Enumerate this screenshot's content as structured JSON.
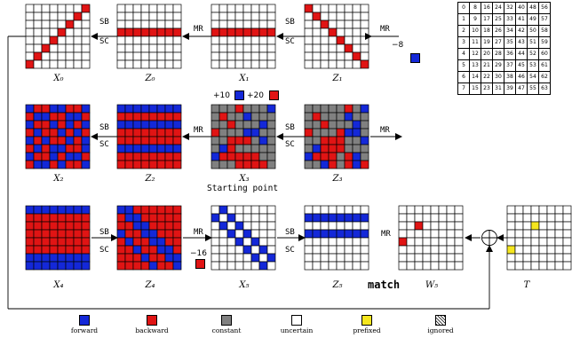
{
  "colors": {
    "forward": "#1428d8",
    "backward": "#e01414",
    "constant": "#808080",
    "uncertain": "#ffffff",
    "prefixed": "#f5e61e",
    "ignored": "hatched"
  },
  "grid_labels": {
    "X0": "X₀",
    "Z0": "Z₀",
    "X1": "X₁",
    "Z1": "Z₁",
    "X2": "X₂",
    "Z2": "Z₂",
    "X3": "X₃",
    "Z3": "Z₃",
    "X4": "X₄",
    "Z4": "Z₄",
    "X5": "X₅",
    "Z5": "Z₅",
    "W5": "W₅",
    "T": "T"
  },
  "ops": {
    "sb": "SB",
    "sc": "SC",
    "mr": "MR"
  },
  "annotations": {
    "minus8": "−8",
    "plus10": "+10",
    "plus20": "+20",
    "minus16": "−16",
    "starting": "Starting point",
    "match": "match"
  },
  "legend": [
    {
      "key": "forward",
      "label": "forward"
    },
    {
      "key": "backward",
      "label": "backward"
    },
    {
      "key": "constant",
      "label": "constant"
    },
    {
      "key": "uncertain",
      "label": "uncertain"
    },
    {
      "key": "prefixed",
      "label": "prefixed"
    },
    {
      "key": "ignored",
      "label": "ignored"
    }
  ],
  "perm_table": [
    [
      "0",
      "8",
      "16",
      "24",
      "32",
      "40",
      "48",
      "56"
    ],
    [
      "1",
      "9",
      "17",
      "25",
      "33",
      "41",
      "49",
      "57"
    ],
    [
      "2",
      "10",
      "18",
      "26",
      "34",
      "42",
      "50",
      "58"
    ],
    [
      "3",
      "11",
      "19",
      "27",
      "35",
      "43",
      "51",
      "59"
    ],
    [
      "4",
      "12",
      "20",
      "28",
      "36",
      "44",
      "52",
      "60"
    ],
    [
      "5",
      "13",
      "21",
      "29",
      "37",
      "45",
      "53",
      "61"
    ],
    [
      "6",
      "14",
      "22",
      "30",
      "38",
      "46",
      "54",
      "62"
    ],
    [
      "7",
      "15",
      "23",
      "31",
      "39",
      "47",
      "55",
      "63"
    ]
  ],
  "grids": {
    "X0": [
      "UUUUUUUR",
      "UUUUUURU",
      "UUUUURUU",
      "UUUURUUU",
      "UUURUUUU",
      "UURUUUUU",
      "URUUUUUU",
      "RUUUUUUU"
    ],
    "Z0": [
      "UUUUUUUU",
      "UUUUUUUU",
      "UUUUUUUU",
      "RRRRRRRR",
      "UUUUUUUU",
      "UUUUUUUU",
      "UUUUUUUU",
      "UUUUUUUU"
    ],
    "X1": [
      "UUUUUUUU",
      "UUUUUUUU",
      "UUUUUUUU",
      "RRRRRRRR",
      "UUUUUUUU",
      "UUUUUUUU",
      "UUUUUUUU",
      "UUUUUUUU"
    ],
    "Z1": [
      "RUUUUUUU",
      "URUUUUUU",
      "UURUUUUU",
      "UUURUUUU",
      "UUUURUUU",
      "UUUUURUU",
      "UUUUUURU",
      "UUUUUUUR"
    ],
    "X2": [
      "BRRBBRRB",
      "RBBRRBBR",
      "BRRBRBRB",
      "RBRRBRBR",
      "BRBRRBRB",
      "RBRBBRRB",
      "BRRBRBBR",
      "RBBRBRRB"
    ],
    "Z2": [
      "BBBBBBBB",
      "RRRRRRRR",
      "BBBBBBBB",
      "RRRRRRRR",
      "RRRRRRRR",
      "BBBBBBBB",
      "RRRRRRRR",
      "RRRRRRRR"
    ],
    "X3": [
      "GGGRGGGB",
      "GRGGBGGG",
      "GGRGGGBG",
      "RGGGBBGG",
      "GGRRRGBG",
      "GBRGGGGG",
      "BRRRRRGG",
      "GGGRRRRG"
    ],
    "Z3": [
      "GGGGGRGB",
      "GRGGGBGG",
      "GGRGGGBG",
      "RGGGRBBG",
      "GGRRRGGB",
      "GBRRRGGG",
      "BRRRGRBG",
      "GGBRGRBR"
    ],
    "X4": [
      "BBBBBBBB",
      "RRRRRRRR",
      "RRRRRRRR",
      "RRRRRRRR",
      "RRRRRRRR",
      "RRRRRRRR",
      "BBBBBBBB",
      "BBBBBBBB"
    ],
    "Z4": [
      "BBRRRRRR",
      "RBBRRRRR",
      "RRBBRRRR",
      "BRRBBRRR",
      "RBRRBBRR",
      "RRBRRBBR",
      "RRRBRRBB",
      "RRRRBRRB"
    ],
    "X5": [
      "UBUUUUUU",
      "BUBUUUUU",
      "UBUBUUUU",
      "UUBUBUUU",
      "UUUBUBUU",
      "UUUUBUBU",
      "UUUUUBUB",
      "UUUUUUBU"
    ],
    "Z5": [
      "UUUUUUUU",
      "BBBBBBBB",
      "UUUUUUUU",
      "BBBBBBBB",
      "UUUUUUUU",
      "UUUUUUUU",
      "UUUUUUUU",
      "UUUUUUUU"
    ],
    "W5": [
      "UUUUUUUU",
      "UUUUUUUU",
      "UURUUUUU",
      "UUUUUUUU",
      "RUUUUUUU",
      "UUUUUUUU",
      "UUUUUUUU",
      "UUUUUUUU"
    ],
    "T": [
      "UUUUUUUU",
      "UUUUUUUU",
      "UUUYUUUU",
      "UUUUUUUU",
      "UUUUUUUU",
      "YUUUUUUU",
      "UUUUUUUU",
      "UUUUUUUU"
    ]
  }
}
